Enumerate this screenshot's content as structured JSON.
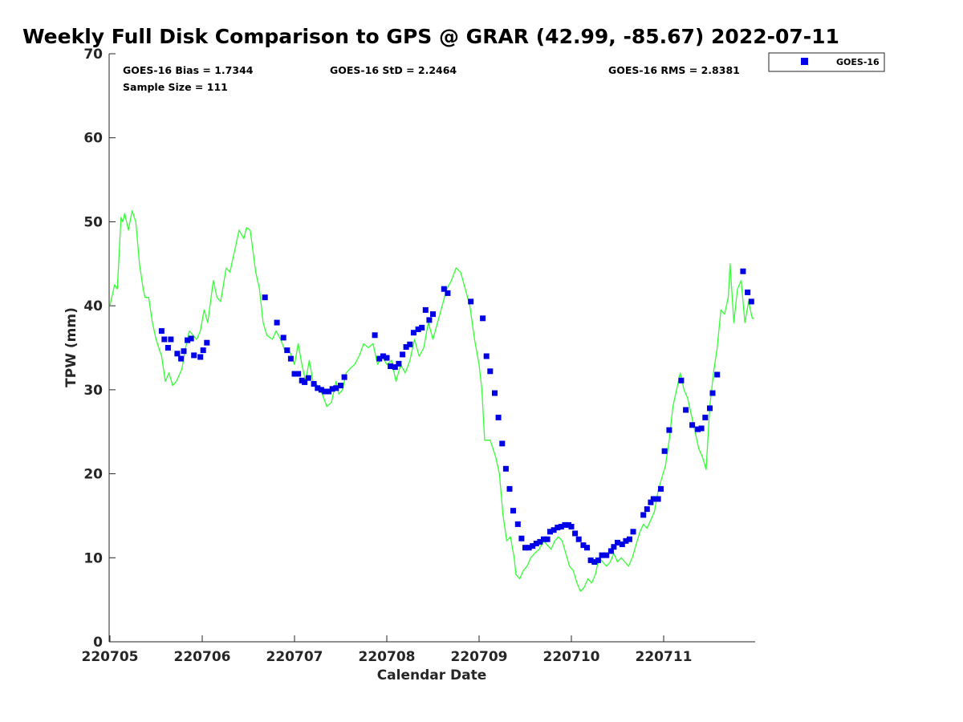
{
  "chart_data": {
    "type": "line+scatter",
    "title": "Weekly Full Disk Comparison to GPS @ GRAR (42.99, -85.67) 2022-07-11",
    "xlabel": "Calendar Date",
    "ylabel": "TPW (mm)",
    "xlim": [
      0,
      7
    ],
    "ylim": [
      0,
      70
    ],
    "x_ticks": [
      {
        "x": 0,
        "label": "220705"
      },
      {
        "x": 1,
        "label": "220706"
      },
      {
        "x": 2,
        "label": "220707"
      },
      {
        "x": 3,
        "label": "220708"
      },
      {
        "x": 4,
        "label": "220709"
      },
      {
        "x": 5,
        "label": "220710"
      },
      {
        "x": 6,
        "label": "220711"
      }
    ],
    "y_ticks": [
      0,
      10,
      20,
      30,
      40,
      50,
      60,
      70
    ],
    "stats": {
      "bias": "GOES-16 Bias = 1.7344",
      "std": "GOES-16 StD = 2.2464",
      "rms": "GOES-16 RMS = 2.8381",
      "sample": "Sample Size = 111"
    },
    "legend": {
      "position": "top-right outside",
      "entries": [
        {
          "label": "GOES-16",
          "color": "#0000e6"
        }
      ]
    },
    "gps_series": {
      "color": "#33ff33",
      "points": [
        [
          0.0,
          40.0
        ],
        [
          0.05,
          42.5
        ],
        [
          0.08,
          42.0
        ],
        [
          0.12,
          50.5
        ],
        [
          0.14,
          50.0
        ],
        [
          0.16,
          51.0
        ],
        [
          0.2,
          49.0
        ],
        [
          0.24,
          51.3
        ],
        [
          0.28,
          50.0
        ],
        [
          0.32,
          45.0
        ],
        [
          0.36,
          42.0
        ],
        [
          0.38,
          41.0
        ],
        [
          0.42,
          41.0
        ],
        [
          0.46,
          38.0
        ],
        [
          0.5,
          36.0
        ],
        [
          0.53,
          35.0
        ],
        [
          0.56,
          34.0
        ],
        [
          0.6,
          31.0
        ],
        [
          0.64,
          32.0
        ],
        [
          0.68,
          30.5
        ],
        [
          0.72,
          31.0
        ],
        [
          0.78,
          32.5
        ],
        [
          0.82,
          35.0
        ],
        [
          0.86,
          37.0
        ],
        [
          0.9,
          36.5
        ],
        [
          0.94,
          36.0
        ],
        [
          0.98,
          37.0
        ],
        [
          1.02,
          39.5
        ],
        [
          1.06,
          38.0
        ],
        [
          1.12,
          43.0
        ],
        [
          1.16,
          41.0
        ],
        [
          1.2,
          40.5
        ],
        [
          1.26,
          44.5
        ],
        [
          1.3,
          44.0
        ],
        [
          1.34,
          46.0
        ],
        [
          1.4,
          49.0
        ],
        [
          1.45,
          48.0
        ],
        [
          1.48,
          49.3
        ],
        [
          1.52,
          49.0
        ],
        [
          1.58,
          44.0
        ],
        [
          1.62,
          42.0
        ],
        [
          1.66,
          38.0
        ],
        [
          1.7,
          36.5
        ],
        [
          1.76,
          36.0
        ],
        [
          1.8,
          37.0
        ],
        [
          1.85,
          36.0
        ],
        [
          1.9,
          34.5
        ],
        [
          1.95,
          34.5
        ],
        [
          2.0,
          33.0
        ],
        [
          2.04,
          35.5
        ],
        [
          2.08,
          33.0
        ],
        [
          2.12,
          31.0
        ],
        [
          2.16,
          33.5
        ],
        [
          2.2,
          31.0
        ],
        [
          2.25,
          30.5
        ],
        [
          2.3,
          29.5
        ],
        [
          2.35,
          28.0
        ],
        [
          2.4,
          28.5
        ],
        [
          2.45,
          31.0
        ],
        [
          2.48,
          29.5
        ],
        [
          2.52,
          30.0
        ],
        [
          2.56,
          32.0
        ],
        [
          2.6,
          32.5
        ],
        [
          2.65,
          33.0
        ],
        [
          2.7,
          34.0
        ],
        [
          2.75,
          35.5
        ],
        [
          2.8,
          35.0
        ],
        [
          2.85,
          35.5
        ],
        [
          2.9,
          33.0
        ],
        [
          2.95,
          34.0
        ],
        [
          3.0,
          33.0
        ],
        [
          3.05,
          33.5
        ],
        [
          3.1,
          31.0
        ],
        [
          3.15,
          33.0
        ],
        [
          3.2,
          32.0
        ],
        [
          3.25,
          33.5
        ],
        [
          3.3,
          36.0
        ],
        [
          3.35,
          34.0
        ],
        [
          3.4,
          35.0
        ],
        [
          3.45,
          38.0
        ],
        [
          3.5,
          36.0
        ],
        [
          3.55,
          38.0
        ],
        [
          3.6,
          40.0
        ],
        [
          3.65,
          42.0
        ],
        [
          3.7,
          43.0
        ],
        [
          3.75,
          44.5
        ],
        [
          3.8,
          44.0
        ],
        [
          3.85,
          42.0
        ],
        [
          3.9,
          40.0
        ],
        [
          3.95,
          36.0
        ],
        [
          4.0,
          33.0
        ],
        [
          4.03,
          30.0
        ],
        [
          4.06,
          24.0
        ],
        [
          4.12,
          24.0
        ],
        [
          4.18,
          22.0
        ],
        [
          4.22,
          20.0
        ],
        [
          4.26,
          15.0
        ],
        [
          4.3,
          12.0
        ],
        [
          4.34,
          12.5
        ],
        [
          4.38,
          10.0
        ],
        [
          4.4,
          8.0
        ],
        [
          4.44,
          7.5
        ],
        [
          4.48,
          8.5
        ],
        [
          4.52,
          9.0
        ],
        [
          4.56,
          10.0
        ],
        [
          4.6,
          10.5
        ],
        [
          4.65,
          11.0
        ],
        [
          4.7,
          12.0
        ],
        [
          4.74,
          11.5
        ],
        [
          4.78,
          11.0
        ],
        [
          4.82,
          12.0
        ],
        [
          4.86,
          12.5
        ],
        [
          4.9,
          12.0
        ],
        [
          4.94,
          10.5
        ],
        [
          4.98,
          9.0
        ],
        [
          5.02,
          8.5
        ],
        [
          5.06,
          7.0
        ],
        [
          5.1,
          6.0
        ],
        [
          5.14,
          6.5
        ],
        [
          5.18,
          7.5
        ],
        [
          5.22,
          7.0
        ],
        [
          5.26,
          8.0
        ],
        [
          5.3,
          10.0
        ],
        [
          5.34,
          9.5
        ],
        [
          5.38,
          9.0
        ],
        [
          5.42,
          9.5
        ],
        [
          5.46,
          10.5
        ],
        [
          5.5,
          9.5
        ],
        [
          5.54,
          10.0
        ],
        [
          5.58,
          9.5
        ],
        [
          5.62,
          9.0
        ],
        [
          5.66,
          10.0
        ],
        [
          5.7,
          11.5
        ],
        [
          5.74,
          13.0
        ],
        [
          5.78,
          14.0
        ],
        [
          5.82,
          13.5
        ],
        [
          5.86,
          14.5
        ],
        [
          5.9,
          15.5
        ],
        [
          5.94,
          18.0
        ],
        [
          5.98,
          19.5
        ],
        [
          6.02,
          21.0
        ],
        [
          6.06,
          24.0
        ],
        [
          6.1,
          28.0
        ],
        [
          6.14,
          30.0
        ],
        [
          6.18,
          32.0
        ],
        [
          6.22,
          30.0
        ],
        [
          6.26,
          29.0
        ],
        [
          6.3,
          27.0
        ],
        [
          6.34,
          25.0
        ],
        [
          6.38,
          23.0
        ],
        [
          6.42,
          22.0
        ],
        [
          6.46,
          20.5
        ],
        [
          6.5,
          28.0
        ],
        [
          6.54,
          32.0
        ],
        [
          6.58,
          35.0
        ],
        [
          6.62,
          39.5
        ],
        [
          6.66,
          39.0
        ],
        [
          6.7,
          41.0
        ],
        [
          6.72,
          45.0
        ],
        [
          6.76,
          38.0
        ],
        [
          6.8,
          42.0
        ],
        [
          6.84,
          43.0
        ],
        [
          6.88,
          38.0
        ],
        [
          6.92,
          40.5
        ],
        [
          6.96,
          38.5
        ],
        [
          6.98,
          38.5
        ]
      ]
    },
    "goes_series": {
      "name": "GOES-16",
      "color": "#0000e6",
      "points": [
        [
          0.56,
          37.0
        ],
        [
          0.59,
          36.0
        ],
        [
          0.63,
          35.0
        ],
        [
          0.66,
          36.0
        ],
        [
          0.73,
          34.3
        ],
        [
          0.77,
          33.7
        ],
        [
          0.8,
          34.6
        ],
        [
          0.84,
          35.9
        ],
        [
          0.88,
          36.1
        ],
        [
          0.91,
          34.1
        ],
        [
          0.98,
          33.9
        ],
        [
          1.01,
          34.7
        ],
        [
          1.05,
          35.6
        ],
        [
          1.68,
          41.0
        ],
        [
          1.81,
          38.0
        ],
        [
          1.88,
          36.2
        ],
        [
          1.92,
          34.7
        ],
        [
          1.96,
          33.7
        ],
        [
          2.0,
          31.9
        ],
        [
          2.04,
          31.9
        ],
        [
          2.08,
          31.1
        ],
        [
          2.11,
          30.9
        ],
        [
          2.15,
          31.4
        ],
        [
          2.21,
          30.7
        ],
        [
          2.25,
          30.2
        ],
        [
          2.29,
          30.0
        ],
        [
          2.33,
          29.8
        ],
        [
          2.37,
          29.8
        ],
        [
          2.41,
          30.1
        ],
        [
          2.45,
          30.2
        ],
        [
          2.5,
          30.5
        ],
        [
          2.54,
          31.5
        ],
        [
          2.87,
          36.5
        ],
        [
          2.92,
          33.7
        ],
        [
          2.96,
          34.0
        ],
        [
          3.0,
          33.8
        ],
        [
          3.04,
          32.8
        ],
        [
          3.09,
          32.7
        ],
        [
          3.13,
          33.1
        ],
        [
          3.17,
          34.2
        ],
        [
          3.21,
          35.1
        ],
        [
          3.25,
          35.4
        ],
        [
          3.29,
          36.8
        ],
        [
          3.34,
          37.2
        ],
        [
          3.38,
          37.4
        ],
        [
          3.42,
          39.5
        ],
        [
          3.46,
          38.3
        ],
        [
          3.5,
          39.0
        ],
        [
          3.62,
          42.0
        ],
        [
          3.66,
          41.5
        ],
        [
          3.91,
          40.5
        ],
        [
          4.04,
          38.5
        ],
        [
          4.08,
          34.0
        ],
        [
          4.12,
          32.2
        ],
        [
          4.17,
          29.6
        ],
        [
          4.21,
          26.7
        ],
        [
          4.25,
          23.6
        ],
        [
          4.29,
          20.6
        ],
        [
          4.33,
          18.2
        ],
        [
          4.37,
          15.6
        ],
        [
          4.42,
          14.0
        ],
        [
          4.46,
          12.3
        ],
        [
          4.5,
          11.2
        ],
        [
          4.54,
          11.2
        ],
        [
          4.58,
          11.4
        ],
        [
          4.62,
          11.7
        ],
        [
          4.66,
          11.9
        ],
        [
          4.7,
          12.2
        ],
        [
          4.74,
          12.2
        ],
        [
          4.77,
          13.1
        ],
        [
          4.81,
          13.3
        ],
        [
          4.85,
          13.6
        ],
        [
          4.89,
          13.7
        ],
        [
          4.93,
          13.9
        ],
        [
          4.97,
          13.9
        ],
        [
          5.0,
          13.7
        ],
        [
          5.04,
          12.9
        ],
        [
          5.08,
          12.2
        ],
        [
          5.13,
          11.5
        ],
        [
          5.17,
          11.2
        ],
        [
          5.21,
          9.7
        ],
        [
          5.25,
          9.5
        ],
        [
          5.29,
          9.7
        ],
        [
          5.33,
          10.3
        ],
        [
          5.38,
          10.3
        ],
        [
          5.43,
          10.8
        ],
        [
          5.46,
          11.3
        ],
        [
          5.5,
          11.8
        ],
        [
          5.55,
          11.6
        ],
        [
          5.59,
          12.0
        ],
        [
          5.63,
          12.2
        ],
        [
          5.67,
          13.1
        ],
        [
          5.78,
          15.1
        ],
        [
          5.82,
          15.8
        ],
        [
          5.86,
          16.6
        ],
        [
          5.89,
          17.0
        ],
        [
          5.94,
          17.0
        ],
        [
          5.97,
          18.2
        ],
        [
          6.01,
          22.7
        ],
        [
          6.06,
          25.2
        ],
        [
          6.19,
          31.1
        ],
        [
          6.24,
          27.6
        ],
        [
          6.31,
          25.8
        ],
        [
          6.37,
          25.3
        ],
        [
          6.41,
          25.4
        ],
        [
          6.45,
          26.7
        ],
        [
          6.5,
          27.8
        ],
        [
          6.53,
          29.6
        ],
        [
          6.58,
          31.8
        ],
        [
          6.86,
          44.1
        ],
        [
          6.91,
          41.6
        ],
        [
          6.95,
          40.5
        ]
      ]
    }
  }
}
